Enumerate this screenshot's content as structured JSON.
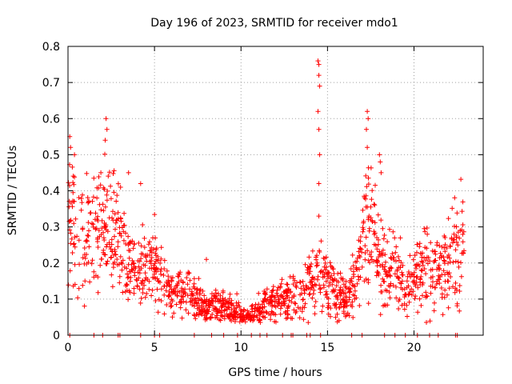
{
  "chart_data": {
    "type": "scatter",
    "title": "Day 196 of 2023, SRMTID for receiver mdo1",
    "xlabel": "GPS time / hours",
    "ylabel": "SRMTID / TECUs",
    "xlim": [
      0,
      24
    ],
    "ylim": [
      0,
      0.8
    ],
    "xticks": [
      0,
      5,
      10,
      15,
      20
    ],
    "xtick_labels": [
      "0",
      "5",
      "10",
      "15",
      "20"
    ],
    "yticks": [
      0,
      0.1,
      0.2,
      0.3,
      0.4,
      0.5,
      0.6,
      0.7,
      0.8
    ],
    "ytick_labels": [
      "0",
      "0.1",
      "0.2",
      "0.3",
      "0.4",
      "0.5",
      "0.6",
      "0.7",
      "0.8"
    ],
    "grid": true,
    "marker": "+",
    "marker_color": "#ff0000",
    "trend": [
      [
        0.0,
        0.34
      ],
      [
        0.5,
        0.3
      ],
      [
        1.0,
        0.26
      ],
      [
        1.5,
        0.27
      ],
      [
        2.0,
        0.31
      ],
      [
        2.5,
        0.29
      ],
      [
        3.0,
        0.25
      ],
      [
        3.5,
        0.2
      ],
      [
        4.0,
        0.17
      ],
      [
        4.5,
        0.19
      ],
      [
        5.0,
        0.2
      ],
      [
        5.5,
        0.15
      ],
      [
        6.0,
        0.12
      ],
      [
        6.5,
        0.12
      ],
      [
        7.0,
        0.12
      ],
      [
        7.5,
        0.1
      ],
      [
        8.0,
        0.07
      ],
      [
        8.5,
        0.09
      ],
      [
        9.0,
        0.08
      ],
      [
        9.5,
        0.07
      ],
      [
        10.0,
        0.06
      ],
      [
        10.5,
        0.05
      ],
      [
        11.0,
        0.07
      ],
      [
        11.5,
        0.09
      ],
      [
        12.0,
        0.09
      ],
      [
        12.5,
        0.1
      ],
      [
        13.0,
        0.12
      ],
      [
        13.5,
        0.13
      ],
      [
        14.0,
        0.15
      ],
      [
        14.5,
        0.17
      ],
      [
        15.0,
        0.15
      ],
      [
        15.5,
        0.12
      ],
      [
        16.0,
        0.1
      ],
      [
        16.5,
        0.14
      ],
      [
        17.0,
        0.25
      ],
      [
        17.5,
        0.32
      ],
      [
        18.0,
        0.2
      ],
      [
        18.5,
        0.16
      ],
      [
        19.0,
        0.18
      ],
      [
        19.5,
        0.12
      ],
      [
        20.0,
        0.17
      ],
      [
        20.5,
        0.2
      ],
      [
        21.0,
        0.19
      ],
      [
        21.5,
        0.16
      ],
      [
        22.0,
        0.2
      ],
      [
        22.5,
        0.24
      ],
      [
        22.9,
        0.26
      ]
    ],
    "spikes": [
      [
        0.1,
        0.55
      ],
      [
        0.15,
        0.52
      ],
      [
        2.2,
        0.6
      ],
      [
        2.25,
        0.57
      ],
      [
        2.15,
        0.54
      ],
      [
        14.45,
        0.76
      ],
      [
        14.5,
        0.75
      ],
      [
        14.5,
        0.72
      ],
      [
        14.55,
        0.69
      ],
      [
        14.45,
        0.62
      ],
      [
        14.5,
        0.57
      ],
      [
        14.55,
        0.5
      ],
      [
        14.5,
        0.42
      ],
      [
        14.5,
        0.33
      ],
      [
        17.3,
        0.62
      ],
      [
        17.35,
        0.6
      ],
      [
        17.25,
        0.57
      ],
      [
        17.3,
        0.52
      ],
      [
        18.0,
        0.5
      ],
      [
        18.05,
        0.48
      ],
      [
        18.1,
        0.45
      ],
      [
        8.0,
        0.21
      ],
      [
        1.9,
        0.45
      ],
      [
        4.2,
        0.42
      ],
      [
        3.5,
        0.45
      ]
    ],
    "zero_points": [
      0.1,
      1.5,
      2.0,
      2.9,
      3.0,
      4.2,
      5.0,
      5.3,
      7.3,
      8.3,
      9.0,
      9.8,
      10.6,
      11.1,
      11.5,
      12.4,
      12.9,
      13.0,
      13.8,
      14.0,
      14.6,
      16.4,
      17.0,
      18.3,
      18.9,
      19.5,
      20.2,
      20.9,
      21.4,
      22.4,
      22.5
    ]
  }
}
